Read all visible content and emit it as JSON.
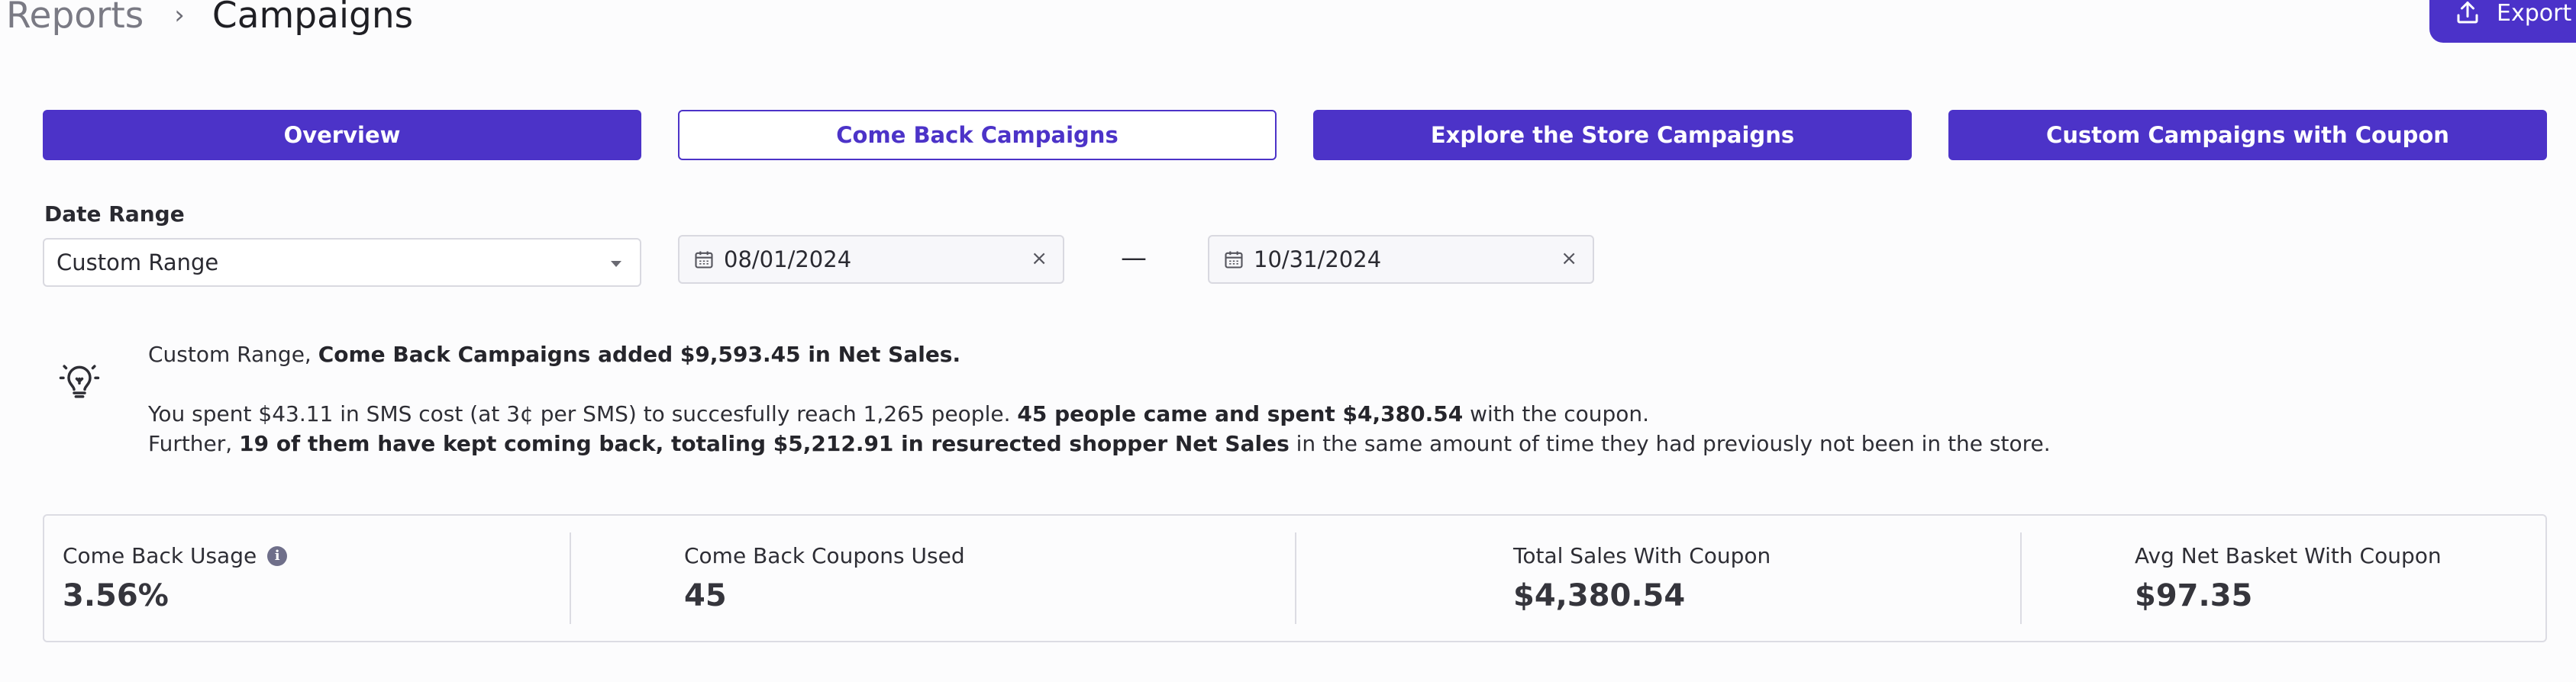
{
  "header": {
    "breadcrumb_root": "Reports",
    "breadcrumb_separator": "›",
    "breadcrumb_current": "Campaigns",
    "export_label": "Export"
  },
  "tabs": [
    {
      "label": "Overview",
      "active": false
    },
    {
      "label": "Come Back Campaigns",
      "active": true
    },
    {
      "label": "Explore the Store Campaigns",
      "active": false
    },
    {
      "label": "Custom Campaigns with Coupon",
      "active": false
    }
  ],
  "date_range": {
    "label": "Date Range",
    "selected": "Custom Range",
    "start_date": "08/01/2024",
    "end_date": "10/31/2024",
    "separator": "—",
    "clear_symbol": "×"
  },
  "insight": {
    "line1_prefix": "Custom Range, ",
    "line1_bold": "Come Back Campaigns added $9,593.45 in Net Sales.",
    "line2_text": "You spent $43.11 in SMS cost (at 3¢ per SMS) to succesfully reach 1,265 people. ",
    "line2_bold": "45 people came and spent $4,380.54",
    "line2_suffix": " with the coupon.",
    "line3_prefix": "Further, ",
    "line3_bold": "19 of them have kept coming back, totaling $5,212.91 in resurected shopper Net Sales",
    "line3_suffix": " in the same amount of time they had previously not been in the store."
  },
  "stats": [
    {
      "label": "Come Back Usage",
      "value": "3.56%",
      "info_icon": "i"
    },
    {
      "label": "Come Back Coupons Used",
      "value": "45"
    },
    {
      "label": "Total Sales With Coupon",
      "value": "$4,380.54"
    },
    {
      "label": "Avg Net Basket With Coupon",
      "value": "$97.35"
    }
  ],
  "icons": {
    "export": "upload-icon",
    "calendar": "calendar-icon",
    "lightbulb": "lightbulb-icon",
    "info": "info-icon",
    "dropdown": "chevron-down-icon",
    "clear": "close-icon"
  },
  "colors": {
    "accent": "#4c33c8",
    "background": "#fcfcfd",
    "border": "#d9d9e0"
  }
}
